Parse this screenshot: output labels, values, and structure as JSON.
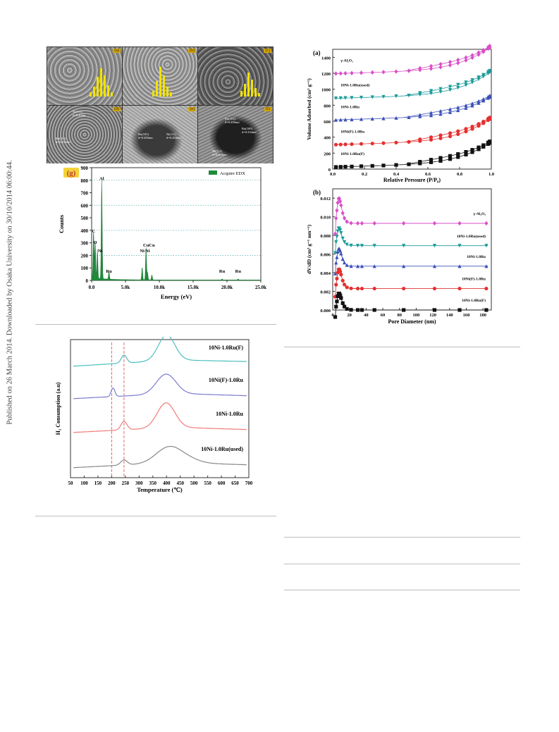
{
  "side_note": "Published on 26 March 2014. Downloaded by Osaka University on 30/10/2014 06:00:44.",
  "micrographs": {
    "panel_labels": [
      "(a)",
      "(b)",
      "(c)",
      "(d)",
      "(e)",
      "(f)"
    ],
    "annotations": {
      "d": [
        "Ni(111)",
        "d=0.20nm",
        "Ru(101)",
        "d=0.205nm"
      ],
      "e": [
        "Ru(101)",
        "d=0.205nm",
        "Ni(111)",
        "d=0.204nm"
      ],
      "f": [
        "Ru(101)",
        "d=0.209nm",
        "Ru(100)",
        "d=0.234nm",
        "Ni(111)",
        "d=0.204nm"
      ]
    }
  },
  "chart_data": [
    {
      "id": "edx",
      "type": "area",
      "panel_label": "(g)",
      "legend": "Acquire EDX",
      "xlabel": "Energy (eV)",
      "ylabel": "Counts",
      "xlim": [
        0,
        25000
      ],
      "ylim": [
        0,
        900
      ],
      "x_ticks": [
        0,
        5000,
        10000,
        15000,
        20000,
        25000
      ],
      "x_tick_labels": [
        "0.0",
        "5.0k",
        "10.0k",
        "15.0k",
        "20.0k",
        "25.0k"
      ],
      "y_ticks": [
        0,
        100,
        200,
        300,
        400,
        500,
        600,
        700,
        800,
        900
      ],
      "grid": "dotted-horizontal",
      "peaks": [
        {
          "label": "C",
          "x": 280,
          "y": 380
        },
        {
          "label": "O",
          "x": 520,
          "y": 300
        },
        {
          "label": "Ni",
          "x": 850,
          "y": 230
        },
        {
          "label": "Al",
          "x": 1490,
          "y": 790
        },
        {
          "label": "Ru",
          "x": 2560,
          "y": 60
        },
        {
          "label": "Ni",
          "x": 7470,
          "y": 100
        },
        {
          "label": "Cu",
          "x": 8040,
          "y": 260
        },
        {
          "label": "Ni",
          "x": 8260,
          "y": 60
        },
        {
          "label": "Cu",
          "x": 8900,
          "y": 40
        },
        {
          "label": "Ru",
          "x": 19280,
          "y": 8
        },
        {
          "label": "Ru",
          "x": 21650,
          "y": 8
        }
      ],
      "peak_label_y": {
        "C": 370,
        "O": 280,
        "Ni": 215,
        "Al": 790,
        "Ru": 50,
        "Cu": 260
      }
    },
    {
      "id": "tpr",
      "type": "line",
      "xlabel": "Temperature (℃)",
      "ylabel": "H₂ Consumption (a.u)",
      "xlim": [
        50,
        700
      ],
      "x_ticks": [
        50,
        100,
        150,
        200,
        250,
        300,
        350,
        400,
        450,
        500,
        550,
        600,
        650,
        700
      ],
      "dashed_lines": [
        200,
        245
      ],
      "series": [
        {
          "name": "10Ni-1.0Ru(F)",
          "color": "#4bbfbf",
          "offset": 3.6,
          "baseline_slope": 0.06,
          "peaks": [
            [
              245,
              0.28,
              10
            ],
            [
              400,
              0.9,
              30
            ]
          ]
        },
        {
          "name": "10Ni(F)-1.0Ru",
          "color": "#7b7bd0",
          "offset": 2.45,
          "baseline_slope": 0.05,
          "peaks": [
            [
              205,
              0.3,
              7
            ],
            [
              398,
              0.7,
              35
            ]
          ]
        },
        {
          "name": "10Ni-1.0Ru",
          "color": "#f07a7a",
          "offset": 1.25,
          "baseline_slope": 0.05,
          "peaks": [
            [
              245,
              0.3,
              11
            ],
            [
              398,
              0.88,
              32
            ]
          ]
        },
        {
          "name": "10Ni-1.0Ru(used)",
          "color": "#888888",
          "offset": 0.0,
          "baseline_slope": 0.05,
          "peaks": [
            [
              245,
              0.18,
              12
            ],
            [
              405,
              0.52,
              45
            ],
            [
              470,
              0.15,
              45
            ]
          ]
        }
      ]
    },
    {
      "id": "isotherm",
      "type": "scatter",
      "panel_label": "(a)",
      "xlabel": "Relative Pressure (P/P₀)",
      "ylabel": "Volume Adsorbed (cm³ g⁻¹)",
      "xlim": [
        0,
        1.0
      ],
      "ylim": [
        0,
        1500
      ],
      "x_ticks": [
        0.0,
        0.2,
        0.4,
        0.6,
        0.8,
        1.0
      ],
      "x_tick_labels": [
        "0.0",
        "0.2",
        "0.4",
        "0.6",
        "0.8",
        "1.0"
      ],
      "y_ticks": [
        0,
        200,
        400,
        600,
        800,
        1000,
        1200,
        1400
      ],
      "series": [
        {
          "name": "γ-Al₂O₃",
          "color": "#d94fc8",
          "marker": "diamond",
          "base": 1195,
          "rise": 280
        },
        {
          "name": "10Ni-1.0Ru(used)",
          "color": "#1a9a9a",
          "marker": "triangle-down",
          "base": 885,
          "rise": 280
        },
        {
          "name": "10Ni-1.0Ru",
          "color": "#3a4fb8",
          "marker": "triangle-up",
          "base": 615,
          "rise": 240
        },
        {
          "name": "10Ni(F)-1.0Ru",
          "color": "#e53030",
          "marker": "circle",
          "base": 305,
          "rise": 275
        },
        {
          "name": "10Ni-1.0Ru(F)",
          "color": "#111111",
          "marker": "square",
          "base": 25,
          "rise": 255
        }
      ],
      "x_points": [
        0.02,
        0.05,
        0.08,
        0.12,
        0.18,
        0.25,
        0.32,
        0.4,
        0.48,
        0.55,
        0.62,
        0.68,
        0.74,
        0.79,
        0.84,
        0.88,
        0.92,
        0.95,
        0.98,
        0.99
      ]
    },
    {
      "id": "pore",
      "type": "line",
      "panel_label": "(b)",
      "xlabel": "Pore Diameter (nm)",
      "ylabel": "dV/dD (cm³ g⁻¹ nm⁻¹)",
      "xlim": [
        0,
        190
      ],
      "ylim": [
        0,
        0.013
      ],
      "x_ticks": [
        0,
        20,
        40,
        60,
        80,
        100,
        120,
        140,
        160,
        180
      ],
      "y_ticks": [
        0.0,
        0.002,
        0.004,
        0.006,
        0.008,
        0.01,
        0.012
      ],
      "y_tick_labels": [
        "0.000",
        "0.002",
        "0.004",
        "0.006",
        "0.008",
        "0.010",
        "0.012"
      ],
      "series": [
        {
          "name": "γ-Al₂O₃",
          "color": "#d94fc8",
          "marker": "diamond",
          "base": 0.0093,
          "peak": 0.012
        },
        {
          "name": "10Ni-1.0Ru(used)",
          "color": "#1a9a9a",
          "marker": "triangle-down",
          "base": 0.0069,
          "peak": 0.0088
        },
        {
          "name": "10Ni-1.0Ru",
          "color": "#3a4fb8",
          "marker": "triangle-up",
          "base": 0.0047,
          "peak": 0.0066
        },
        {
          "name": "10Ni(F)-1.0Ru",
          "color": "#e53030",
          "marker": "circle",
          "base": 0.0023,
          "peak": 0.0044
        },
        {
          "name": "10Ni-1.0Ru(F)",
          "color": "#111111",
          "marker": "square",
          "base": 0.0,
          "peak": 0.0018
        }
      ],
      "x_points": [
        3,
        4,
        5,
        6,
        7,
        8,
        9,
        10,
        12,
        14,
        17,
        22,
        30,
        35,
        50,
        85,
        122,
        152,
        184
      ]
    }
  ]
}
